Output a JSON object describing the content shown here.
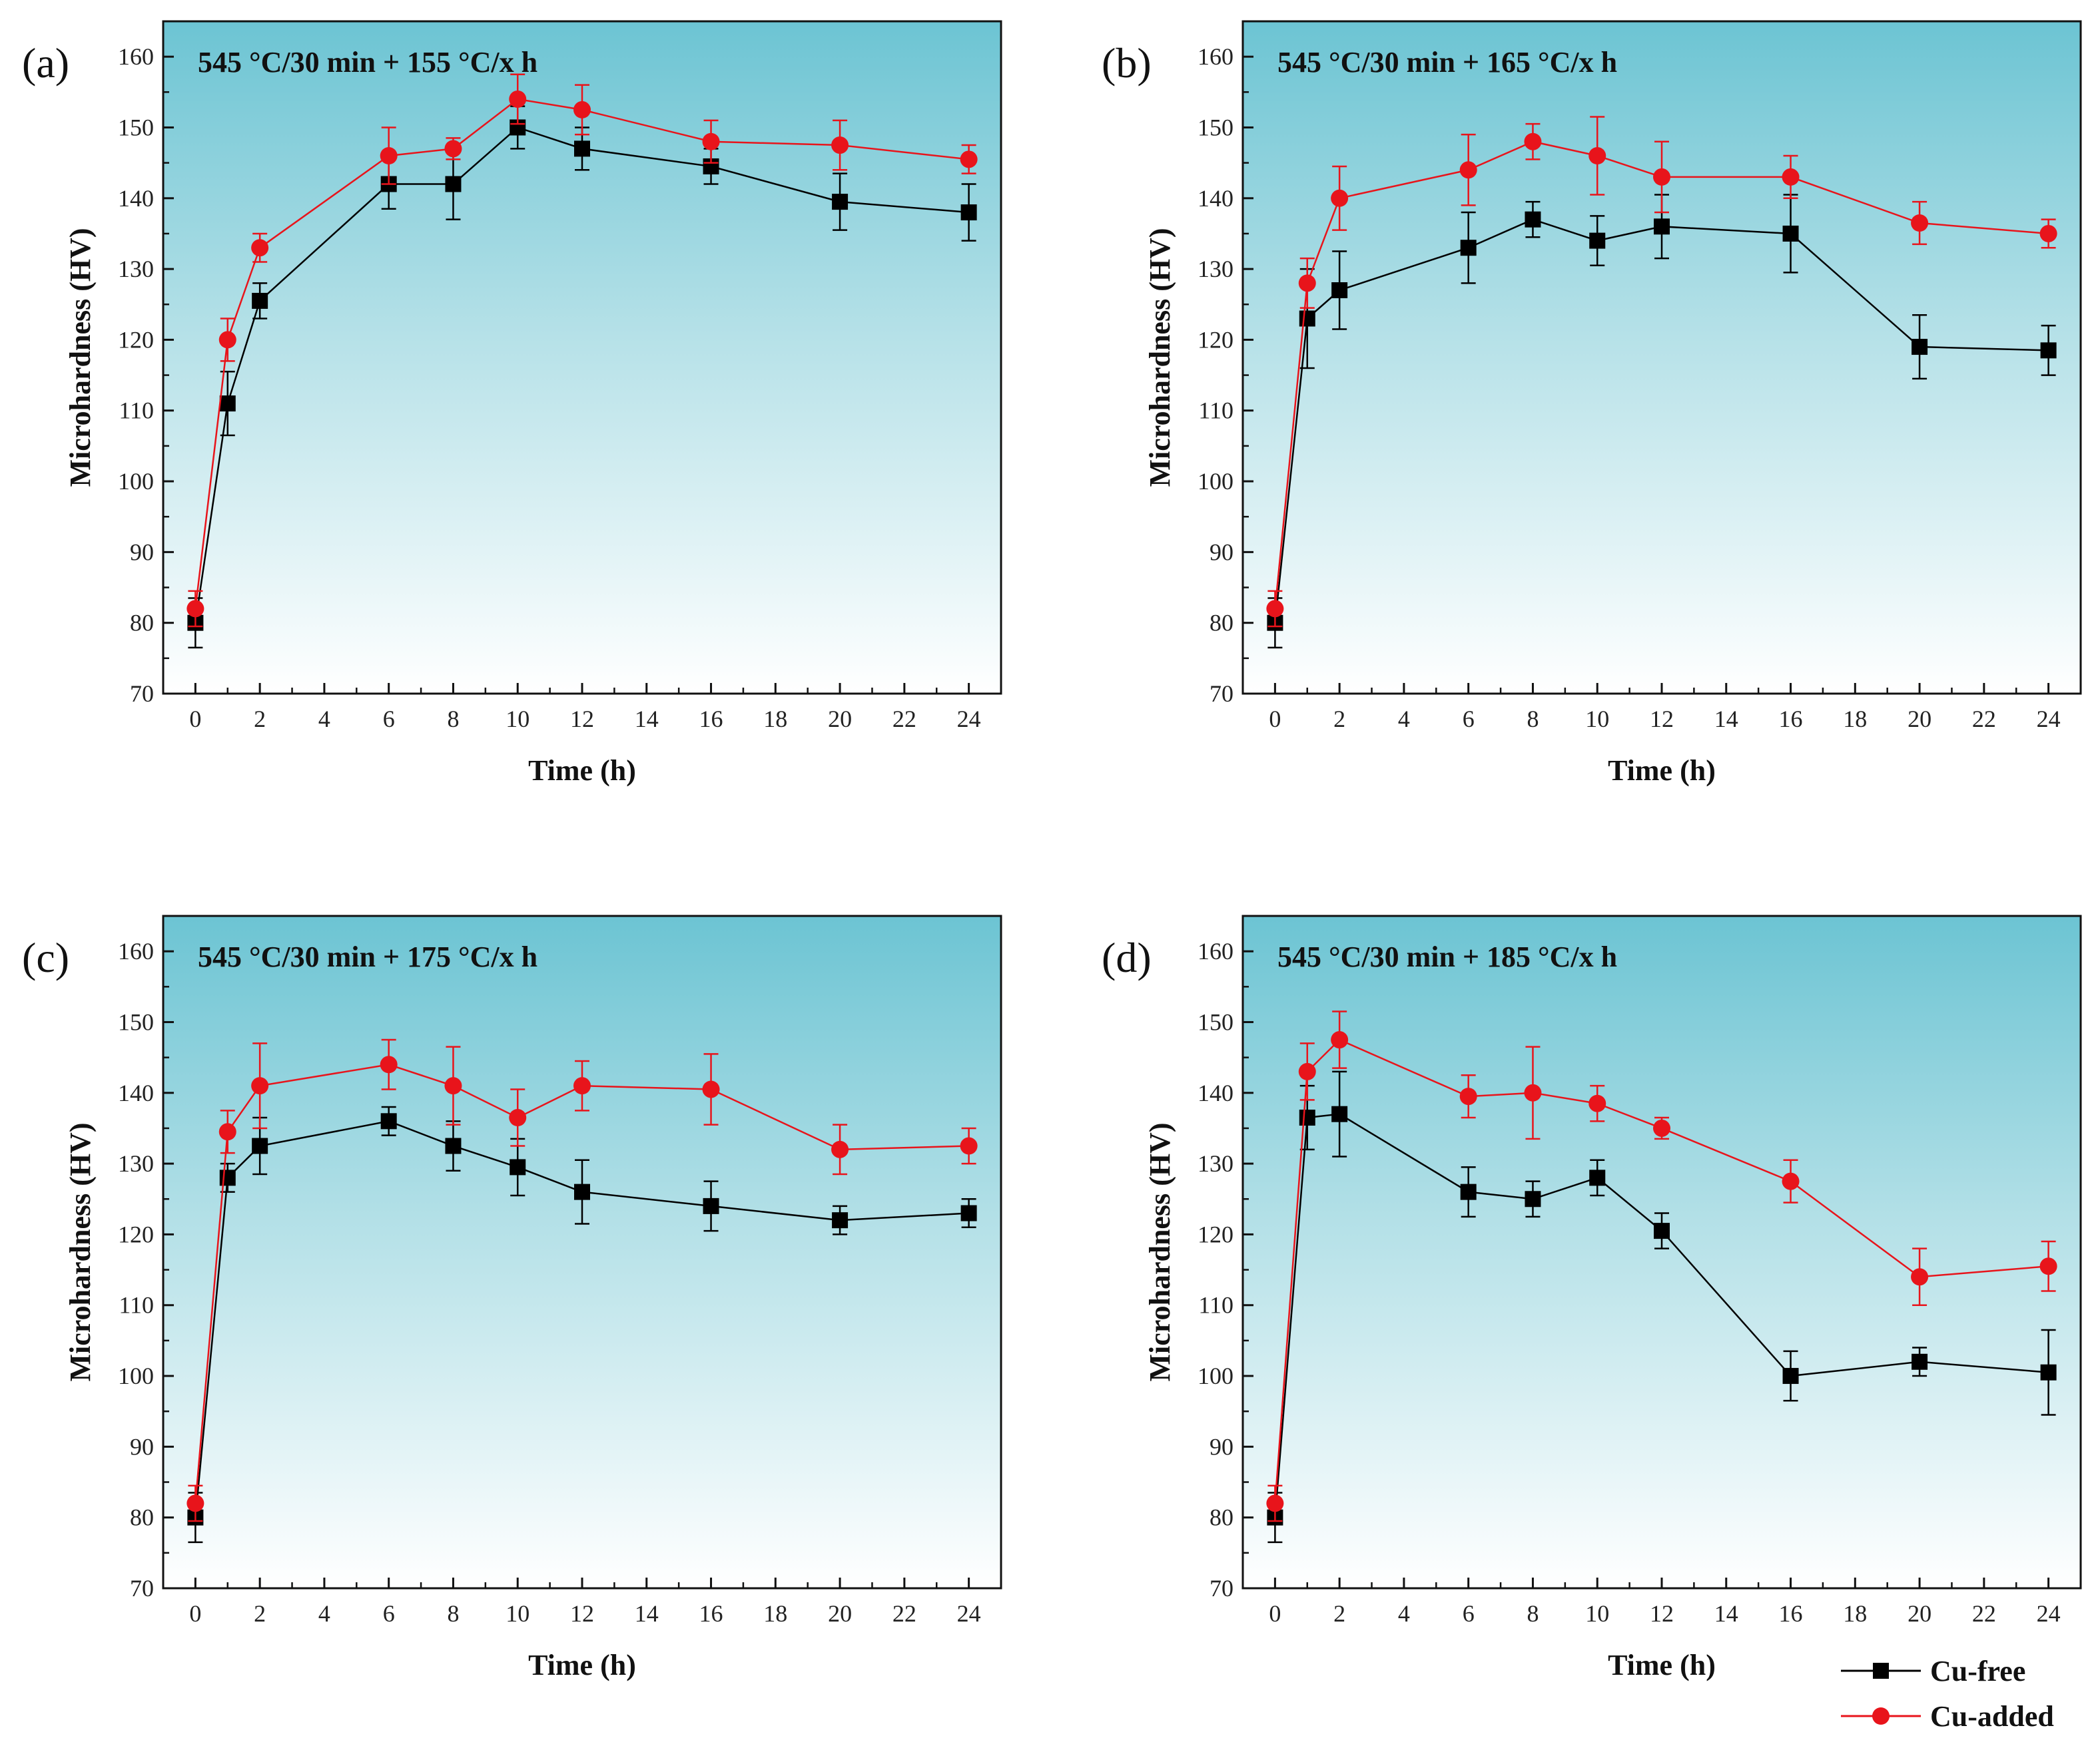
{
  "colors": {
    "cu_free": "#000000",
    "cu_added": "#e8141b",
    "bg_top": "#6cc4d3",
    "bg_bottom": "#ffffff"
  },
  "legend": {
    "cu_free": "Cu-free",
    "cu_added": "Cu-added"
  },
  "chart_data": [
    {
      "type": "line",
      "panel_label": "(a)",
      "title": "545 °C/30 min + 155 °C/x h",
      "xlabel": "Time (h)",
      "ylabel": "Microhardness (HV)",
      "xlim": [
        -1,
        25
      ],
      "ylim": [
        70,
        165
      ],
      "xticks": [
        0,
        2,
        4,
        6,
        8,
        10,
        12,
        14,
        16,
        18,
        20,
        22,
        24
      ],
      "yticks": [
        70,
        80,
        90,
        100,
        110,
        120,
        130,
        140,
        150,
        160
      ],
      "x": [
        0,
        1,
        2,
        6,
        8,
        10,
        12,
        16,
        20,
        24
      ],
      "series": [
        {
          "name": "Cu-free",
          "marker": "square",
          "values": [
            80,
            111,
            125.5,
            142,
            142,
            150,
            147,
            144.5,
            139.5,
            138
          ],
          "errors": [
            3.5,
            4.5,
            2.5,
            3.5,
            5,
            3,
            3,
            2.5,
            4,
            4
          ]
        },
        {
          "name": "Cu-added",
          "marker": "circle",
          "values": [
            82,
            120,
            133,
            146,
            147,
            154,
            152.5,
            148,
            147.5,
            145.5
          ],
          "errors": [
            2.5,
            3,
            2,
            4,
            1.5,
            3.5,
            3.5,
            3,
            3.5,
            2
          ]
        }
      ]
    },
    {
      "type": "line",
      "panel_label": "(b)",
      "title": "545 °C/30 min + 165 °C/x h",
      "xlabel": "Time (h)",
      "ylabel": "Microhardness (HV)",
      "xlim": [
        -1,
        25
      ],
      "ylim": [
        70,
        165
      ],
      "xticks": [
        0,
        2,
        4,
        6,
        8,
        10,
        12,
        14,
        16,
        18,
        20,
        22,
        24
      ],
      "yticks": [
        70,
        80,
        90,
        100,
        110,
        120,
        130,
        140,
        150,
        160
      ],
      "x": [
        0,
        1,
        2,
        6,
        8,
        10,
        12,
        16,
        20,
        24
      ],
      "series": [
        {
          "name": "Cu-free",
          "marker": "square",
          "values": [
            80,
            123,
            127,
            133,
            137,
            134,
            136,
            135,
            119,
            118.5
          ],
          "errors": [
            3.5,
            7,
            5.5,
            5,
            2.5,
            3.5,
            4.5,
            5.5,
            4.5,
            3.5
          ]
        },
        {
          "name": "Cu-added",
          "marker": "circle",
          "values": [
            82,
            128,
            140,
            144,
            148,
            146,
            143,
            143,
            136.5,
            135
          ],
          "errors": [
            2.5,
            3.5,
            4.5,
            5,
            2.5,
            5.5,
            5,
            3,
            3,
            2
          ]
        }
      ]
    },
    {
      "type": "line",
      "panel_label": "(c)",
      "title": "545 °C/30 min + 175 °C/x h",
      "xlabel": "Time (h)",
      "ylabel": "Microhardness (HV)",
      "xlim": [
        -1,
        25
      ],
      "ylim": [
        70,
        165
      ],
      "xticks": [
        0,
        2,
        4,
        6,
        8,
        10,
        12,
        14,
        16,
        18,
        20,
        22,
        24
      ],
      "yticks": [
        70,
        80,
        90,
        100,
        110,
        120,
        130,
        140,
        150,
        160
      ],
      "x": [
        0,
        1,
        2,
        6,
        8,
        10,
        12,
        16,
        20,
        24
      ],
      "series": [
        {
          "name": "Cu-free",
          "marker": "square",
          "values": [
            80,
            128,
            132.5,
            136,
            132.5,
            129.5,
            126,
            124,
            122,
            123
          ],
          "errors": [
            3.5,
            2,
            4,
            2,
            3.5,
            4,
            4.5,
            3.5,
            2,
            2
          ]
        },
        {
          "name": "Cu-added",
          "marker": "circle",
          "values": [
            82,
            134.5,
            141,
            144,
            141,
            136.5,
            141,
            140.5,
            132,
            132.5
          ],
          "errors": [
            2.5,
            3,
            6,
            3.5,
            5.5,
            4,
            3.5,
            5,
            3.5,
            2.5
          ]
        }
      ]
    },
    {
      "type": "line",
      "panel_label": "(d)",
      "title": "545 °C/30 min + 185 °C/x h",
      "xlabel": "Time (h)",
      "ylabel": "Microhardness (HV)",
      "xlim": [
        -1,
        25
      ],
      "ylim": [
        70,
        165
      ],
      "xticks": [
        0,
        2,
        4,
        6,
        8,
        10,
        12,
        14,
        16,
        18,
        20,
        22,
        24
      ],
      "yticks": [
        70,
        80,
        90,
        100,
        110,
        120,
        130,
        140,
        150,
        160
      ],
      "x": [
        0,
        1,
        2,
        6,
        8,
        10,
        12,
        16,
        20,
        24
      ],
      "series": [
        {
          "name": "Cu-free",
          "marker": "square",
          "values": [
            80,
            136.5,
            137,
            126,
            125,
            128,
            120.5,
            100,
            102,
            100.5
          ],
          "errors": [
            3.5,
            4.5,
            6,
            3.5,
            2.5,
            2.5,
            2.5,
            3.5,
            2,
            6
          ]
        },
        {
          "name": "Cu-added",
          "marker": "circle",
          "values": [
            82,
            143,
            147.5,
            139.5,
            140,
            138.5,
            135,
            127.5,
            114,
            115.5
          ],
          "errors": [
            2.5,
            4,
            4,
            3,
            6.5,
            2.5,
            1.5,
            3,
            4,
            3.5
          ]
        }
      ]
    }
  ]
}
